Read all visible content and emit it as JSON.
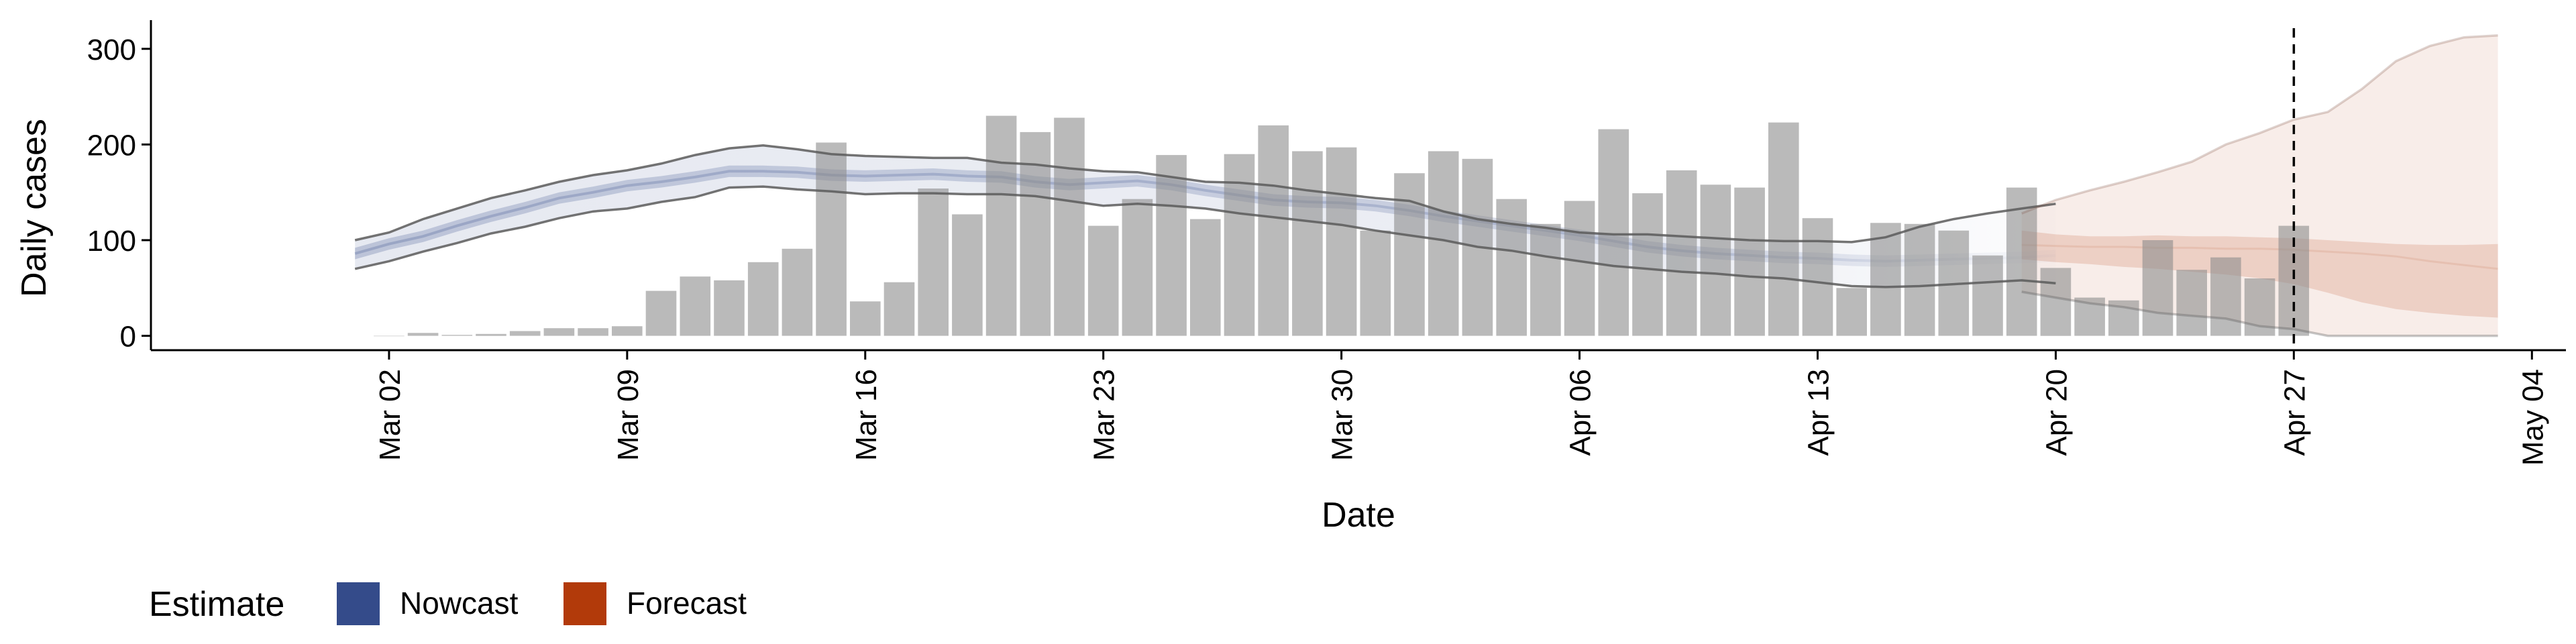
{
  "chart_data": {
    "type": "bar",
    "title": "",
    "xlabel": "Date",
    "ylabel": "Daily cases",
    "ylim": [
      -15,
      330
    ],
    "yticks": [
      "0",
      "100",
      "200",
      "300"
    ],
    "xlim": [
      "2020-02-24",
      "2020-05-05"
    ],
    "xticks": [
      {
        "date": "2020-03-02",
        "label": "Mar 02"
      },
      {
        "date": "2020-03-09",
        "label": "Mar 09"
      },
      {
        "date": "2020-03-16",
        "label": "Mar 16"
      },
      {
        "date": "2020-03-23",
        "label": "Mar 23"
      },
      {
        "date": "2020-03-30",
        "label": "Mar 30"
      },
      {
        "date": "2020-04-06",
        "label": "Apr 06"
      },
      {
        "date": "2020-04-13",
        "label": "Apr 13"
      },
      {
        "date": "2020-04-20",
        "label": "Apr 20"
      },
      {
        "date": "2020-04-27",
        "label": "Apr 27"
      },
      {
        "date": "2020-05-04",
        "label": "May 04"
      }
    ],
    "reference_line": {
      "date": "2020-04-27",
      "style": "dashed"
    },
    "bars": {
      "start_date": "2020-03-02",
      "values": [
        0,
        3,
        1,
        2,
        5,
        8,
        8,
        10,
        47,
        62,
        58,
        77,
        91,
        202,
        36,
        56,
        154,
        127,
        230,
        213,
        228,
        115,
        143,
        189,
        122,
        190,
        220,
        193,
        197,
        110,
        170,
        193,
        185,
        143,
        117,
        141,
        216,
        149,
        173,
        158,
        155,
        223,
        123,
        50,
        118,
        117,
        110,
        84,
        155,
        71,
        40,
        37,
        100,
        69,
        82,
        60,
        115
      ]
    },
    "legend": {
      "title": "Estimate",
      "position": "bottom-left",
      "entries": [
        {
          "label": "Nowcast",
          "color": "#344b8a"
        },
        {
          "label": "Forecast",
          "color": "#b23a0a"
        }
      ]
    },
    "series": [
      {
        "key": "nowcast",
        "color": "#344b8a",
        "start_date": "2020-03-01",
        "median": [
          86,
          96,
          104,
          115,
          125,
          134,
          144,
          150,
          157,
          161,
          166,
          172,
          172,
          171,
          168,
          167,
          168,
          169,
          167,
          166,
          161,
          158,
          160,
          162,
          158,
          152,
          147,
          142,
          140,
          139,
          136,
          131,
          125,
          120,
          115,
          110,
          105,
          99,
          93,
          89,
          86,
          84,
          82,
          81,
          79,
          78,
          79,
          80,
          81,
          82,
          84
        ],
        "lower50": [
          80,
          90,
          98,
          109,
          119,
          128,
          138,
          144,
          151,
          155,
          160,
          166,
          166,
          165,
          162,
          161,
          162,
          163,
          161,
          160,
          155,
          152,
          154,
          156,
          152,
          146,
          141,
          136,
          134,
          133,
          130,
          125,
          119,
          114,
          109,
          104,
          99,
          93,
          87,
          83,
          80,
          78,
          76,
          75,
          73,
          72,
          73,
          74,
          75,
          76,
          77
        ],
        "upper50": [
          92,
          102,
          110,
          121,
          131,
          140,
          150,
          156,
          163,
          167,
          172,
          178,
          178,
          177,
          174,
          173,
          174,
          175,
          173,
          172,
          167,
          164,
          166,
          168,
          164,
          158,
          153,
          148,
          146,
          145,
          142,
          137,
          131,
          126,
          121,
          116,
          111,
          105,
          99,
          95,
          92,
          90,
          88,
          87,
          85,
          84,
          85,
          86,
          87,
          88,
          90
        ],
        "lower90": [
          70,
          78,
          88,
          97,
          107,
          114,
          123,
          130,
          133,
          140,
          145,
          155,
          156,
          153,
          151,
          148,
          149,
          149,
          148,
          148,
          146,
          141,
          136,
          138,
          136,
          133,
          128,
          124,
          120,
          116,
          110,
          105,
          100,
          93,
          89,
          83,
          78,
          73,
          70,
          67,
          65,
          62,
          60,
          56,
          52,
          51,
          52,
          54,
          56,
          58,
          55
        ],
        "upper90": [
          100,
          108,
          122,
          133,
          144,
          152,
          161,
          168,
          173,
          180,
          189,
          196,
          199,
          195,
          190,
          188,
          187,
          186,
          186,
          181,
          179,
          175,
          172,
          171,
          166,
          161,
          160,
          157,
          152,
          148,
          144,
          141,
          130,
          122,
          117,
          113,
          108,
          106,
          106,
          104,
          102,
          100,
          99,
          99,
          98,
          103,
          114,
          122,
          128,
          133,
          138
        ]
      },
      {
        "key": "forecast",
        "color": "#b23a0a",
        "start_date": "2020-04-19",
        "median": [
          95,
          94,
          93,
          93,
          92,
          92,
          91,
          91,
          90,
          88,
          86,
          83,
          78,
          74,
          70
        ],
        "lower50": [
          80,
          77,
          75,
          72,
          70,
          67,
          64,
          60,
          54,
          45,
          35,
          28,
          24,
          21,
          19
        ],
        "upper50": [
          110,
          106,
          104,
          104,
          105,
          104,
          104,
          103,
          102,
          100,
          98,
          96,
          95,
          95,
          96
        ],
        "lower90": [
          46,
          40,
          34,
          30,
          24,
          21,
          18,
          10,
          7,
          0,
          0,
          0,
          0,
          0,
          0
        ],
        "upper90": [
          128,
          142,
          152,
          161,
          171,
          182,
          200,
          212,
          226,
          234,
          258,
          287,
          303,
          312,
          314
        ]
      }
    ]
  }
}
